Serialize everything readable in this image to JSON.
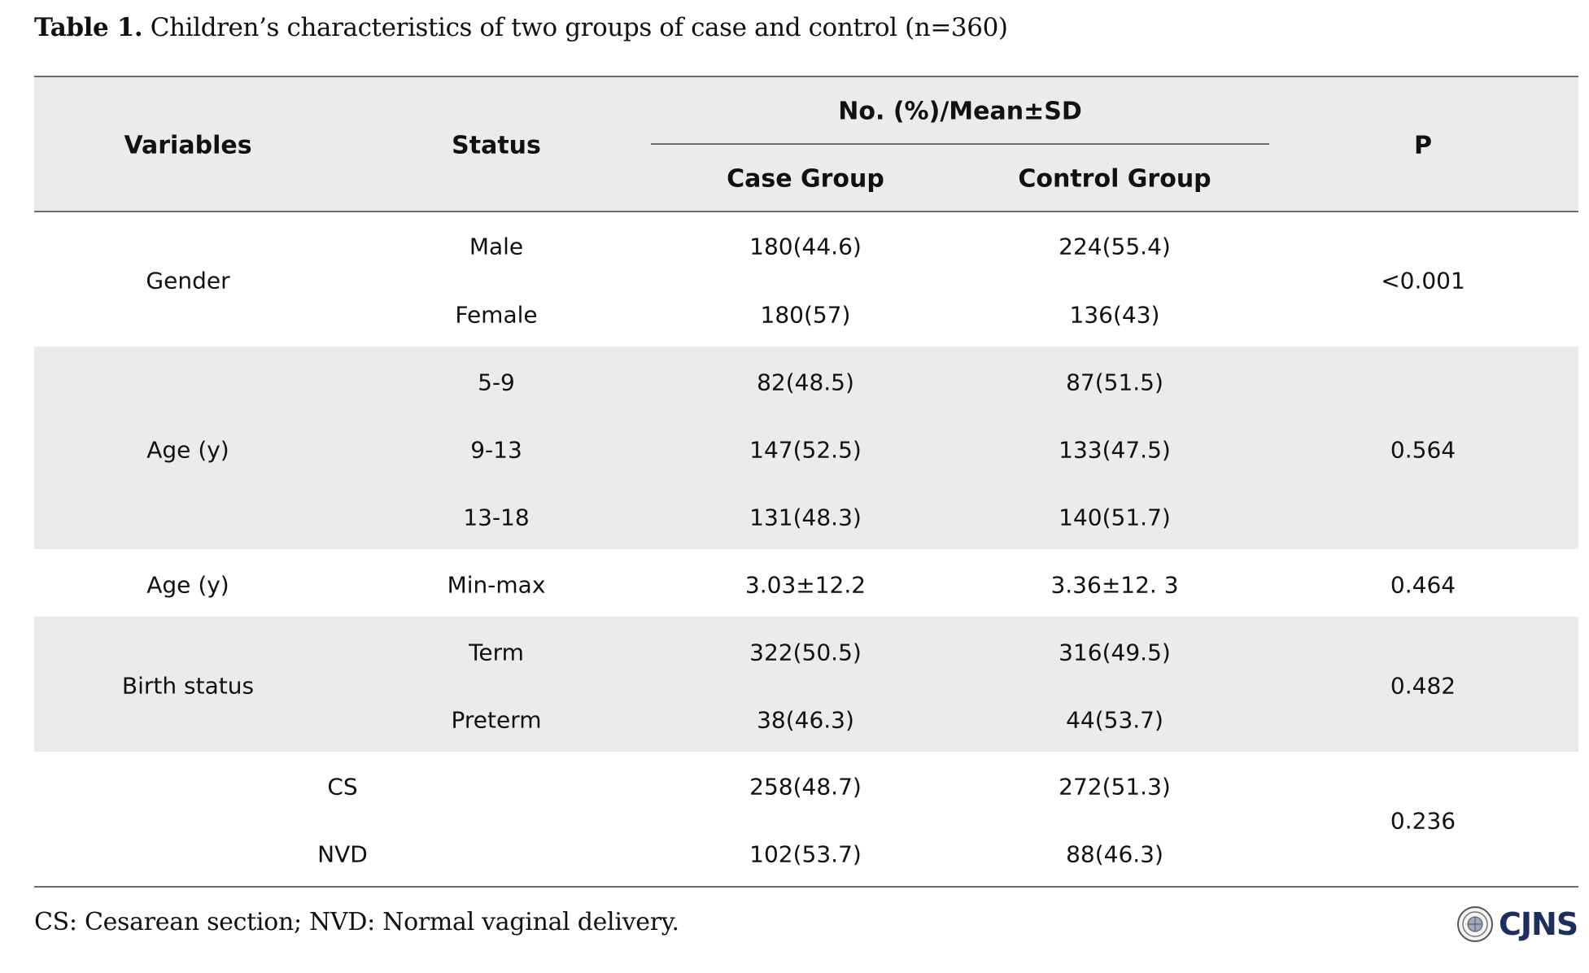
{
  "caption": {
    "label": "Table 1.",
    "text": " Children’s characteristics of two groups of case and control (n=360)"
  },
  "header": {
    "variables": "Variables",
    "status": "Status",
    "group_header": "No. (%)/Mean±SD",
    "case": "Case Group",
    "control": "Control Group",
    "p": "P"
  },
  "rows": [
    {
      "variable": "Gender",
      "p": "<0.001",
      "items": [
        {
          "status": "Male",
          "case": "180(44.6)",
          "control": "224(55.4)"
        },
        {
          "status": "Female",
          "case": "180(57)",
          "control": "136(43)"
        }
      ]
    },
    {
      "variable": "Age (y)",
      "p": "0.564",
      "items": [
        {
          "status": "5-9",
          "case": "82(48.5)",
          "control": "87(51.5)"
        },
        {
          "status": "9-13",
          "case": "147(52.5)",
          "control": "133(47.5)"
        },
        {
          "status": "13-18",
          "case": "131(48.3)",
          "control": "140(51.7)"
        }
      ]
    },
    {
      "variable": "Age (y)",
      "p": "0.464",
      "items": [
        {
          "status": "Min-max",
          "case": "3.03±12.2",
          "control": "3.36±12. 3"
        }
      ]
    },
    {
      "variable": "Birth status",
      "p": "0.482",
      "items": [
        {
          "status": "Term",
          "case": "322(50.5)",
          "control": "316(49.5)"
        },
        {
          "status": "Preterm",
          "case": "38(46.3)",
          "control": "44(53.7)"
        }
      ]
    },
    {
      "variable": "",
      "p": "0.236",
      "items": [
        {
          "status": "CS",
          "case": "258(48.7)",
          "control": "272(51.3)"
        },
        {
          "status": "NVD",
          "case": "102(53.7)",
          "control": "88(46.3)"
        }
      ]
    }
  ],
  "footnote": "CS: Cesarean section; NVD: Normal vaginal delivery.",
  "logo": {
    "text": "CJNS",
    "icon": "journal-seal-icon",
    "color": "#1d2f5f"
  }
}
